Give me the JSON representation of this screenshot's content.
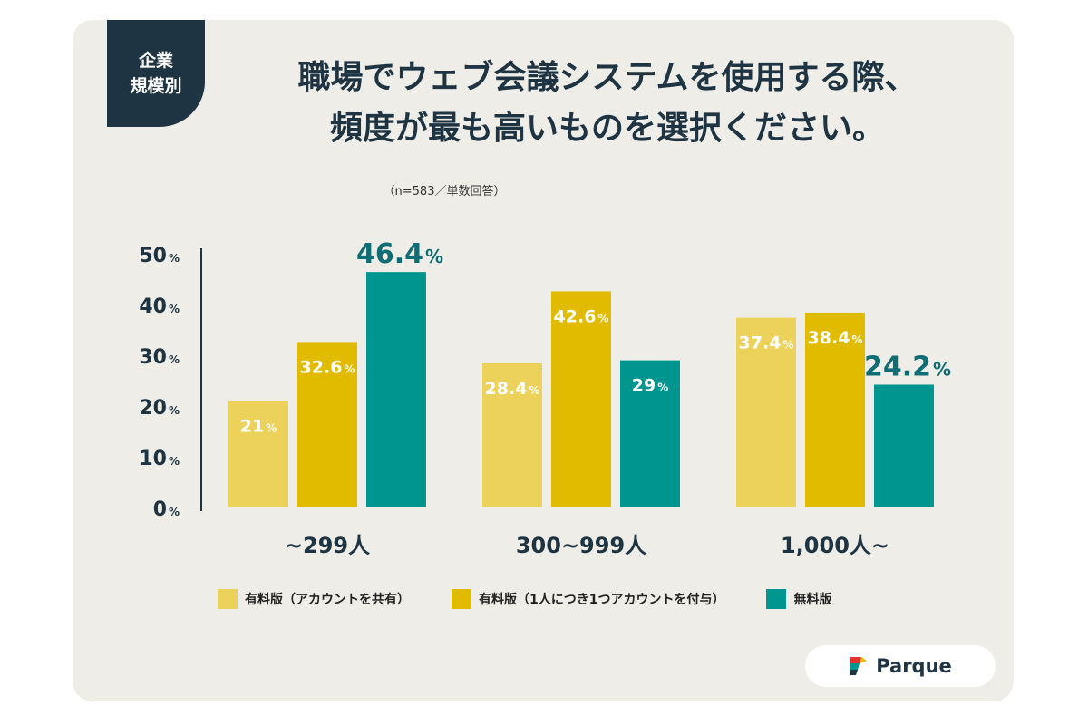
{
  "badge": {
    "line1": "企業",
    "line2": "規模別"
  },
  "title": {
    "line1": "職場でウェブ会議システムを使用する際、",
    "line2": "頻度が最も高いものを選択ください。"
  },
  "sample_note": "（n=583／単数回答）",
  "brand": {
    "name": "Parque",
    "icon": "parque-logo-icon"
  },
  "colors": {
    "shared_paid": "#ecd25b",
    "individual_paid": "#e0bb00",
    "free": "#00958f",
    "text_dark": "#1f3442",
    "free_label": "#0e6e73"
  },
  "chart_data": {
    "type": "bar",
    "categories": [
      "~299人",
      "300~999人",
      "1,000人~"
    ],
    "series": [
      {
        "name": "有料版（アカウントを共有）",
        "values": [
          21,
          28.4,
          37.4
        ]
      },
      {
        "name": "有料版（1人につき1つアカウントを付与）",
        "values": [
          32.6,
          42.6,
          38.4
        ]
      },
      {
        "name": "無料版",
        "values": [
          46.4,
          29,
          24.2
        ]
      }
    ],
    "ylim": [
      0,
      50
    ],
    "yticks": [
      0,
      10,
      20,
      30,
      40,
      50
    ],
    "unit": "%",
    "legend": "bottom",
    "grid": false
  }
}
